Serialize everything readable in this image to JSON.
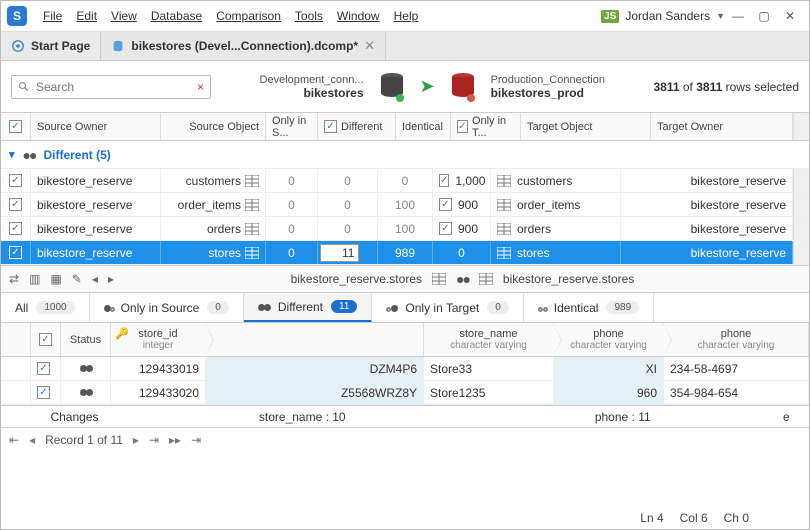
{
  "app": {
    "logo_letter": "S"
  },
  "menu": [
    "File",
    "Edit",
    "View",
    "Database",
    "Comparison",
    "Tools",
    "Window",
    "Help"
  ],
  "user": {
    "badge": "JS",
    "name": "Jordan Sanders"
  },
  "tabs": {
    "start": "Start Page",
    "doc": "bikestores (Devel...Connection).dcomp*"
  },
  "search": {
    "placeholder": "Search"
  },
  "connections": {
    "source": {
      "name": "Development_conn...",
      "db": "bikestores"
    },
    "target": {
      "name": "Production_Connection",
      "db": "bikestores_prod"
    }
  },
  "selection": {
    "selected": "3811",
    "total": "3811",
    "suffix": "rows selected"
  },
  "columns": {
    "source_owner": "Source Owner",
    "source_object": "Source Object",
    "only_s": "Only in S...",
    "different": "Different",
    "identical": "Identical",
    "only_t": "Only in T...",
    "target_object": "Target Object",
    "target_owner": "Target Owner"
  },
  "group": {
    "label": "Different (5)"
  },
  "rows": [
    {
      "owner": "bikestore_reserve",
      "obj": "customers",
      "onlys": "0",
      "diff": "0",
      "ident": "0",
      "onlyt": "1,000",
      "tobj": "customers",
      "towner": "bikestore_reserve",
      "sel": false
    },
    {
      "owner": "bikestore_reserve",
      "obj": "order_items",
      "onlys": "0",
      "diff": "0",
      "ident": "100",
      "onlyt": "900",
      "tobj": "order_items",
      "towner": "bikestore_reserve",
      "sel": false
    },
    {
      "owner": "bikestore_reserve",
      "obj": "orders",
      "onlys": "0",
      "diff": "0",
      "ident": "100",
      "onlyt": "900",
      "tobj": "orders",
      "towner": "bikestore_reserve",
      "sel": false
    },
    {
      "owner": "bikestore_reserve",
      "obj": "stores",
      "onlys": "0",
      "diff": "11",
      "ident": "989",
      "onlyt": "0",
      "tobj": "stores",
      "towner": "bikestore_reserve",
      "sel": true
    }
  ],
  "midbar": {
    "left": "bikestore_reserve.stores",
    "right": "bikestore_reserve.stores"
  },
  "filters": {
    "all": {
      "label": "All",
      "count": "1000"
    },
    "onlysrc": {
      "label": "Only in Source",
      "count": "0"
    },
    "different": {
      "label": "Different",
      "count": "11"
    },
    "onlytgt": {
      "label": "Only in Target",
      "count": "0"
    },
    "identical": {
      "label": "Identical",
      "count": "989"
    }
  },
  "lowcols": {
    "status": "Status",
    "id": {
      "name": "store_id",
      "type": "integer"
    },
    "sname": {
      "name": "store_name",
      "type": "character varying"
    },
    "phone": {
      "name": "phone",
      "type": "character varying"
    }
  },
  "lowrows": [
    {
      "id": "129433019",
      "v1": "DZM4P6",
      "sname": "Store33",
      "p1": "XI",
      "p2": "234-58-4697"
    },
    {
      "id": "129433020",
      "v1": "Z5568WRZ8Y",
      "sname": "Store1235",
      "p1": "960",
      "p2": "354-984-654"
    }
  ],
  "changes": {
    "label": "Changes",
    "sname": "store_name : 10",
    "phone": "phone : 11",
    "tail": "e"
  },
  "recnav": {
    "text": "Record 1 of 11"
  },
  "statusbar": {
    "ln": "Ln 4",
    "col": "Col 6",
    "ch": "Ch 0"
  },
  "colors": {
    "accent": "#1d70d1",
    "select": "#1e90e8"
  }
}
